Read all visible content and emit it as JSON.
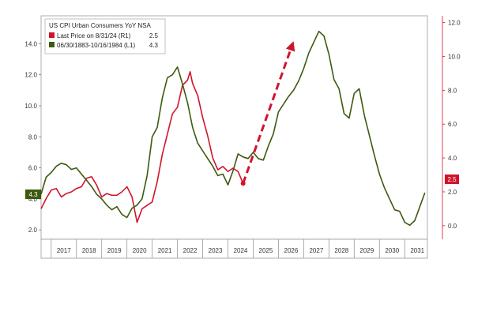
{
  "chart_data": {
    "type": "line",
    "legend": {
      "title": "US CPI Urban Consumers YoY NSA",
      "entries": [
        {
          "label": "Last Price on 8/31/24  (R1)",
          "value": "2.5",
          "color": "#d0142c"
        },
        {
          "label": "06/30/1883-10/16/1984  (L1)",
          "value": "4.3",
          "color": "#3d5a0f"
        }
      ],
      "placement": "top-left"
    },
    "x_categories": [
      "2017",
      "2018",
      "2019",
      "2020",
      "2021",
      "2022",
      "2023",
      "2024",
      "2025",
      "2026",
      "2027",
      "2028",
      "2029",
      "2030",
      "2031"
    ],
    "x_range": [
      2016.6,
      2031.9
    ],
    "left_axis": {
      "ticks": [
        "2.0",
        "4.0",
        "6.0",
        "8.0",
        "10.0",
        "12.0",
        "14.0"
      ],
      "ylim": [
        1.4,
        15.8
      ]
    },
    "right_axis": {
      "ticks": [
        "0.0",
        "2.0",
        "4.0",
        "6.0",
        "8.0",
        "10.0",
        "12.0"
      ],
      "ylim": [
        -0.8,
        12.4
      ]
    },
    "badges": {
      "left": "4.3",
      "right": "2.5"
    },
    "grid": false,
    "series": [
      {
        "name": "US CPI Urban Consumers YoY NSA (R1)",
        "axis": "right",
        "color": "#d0142c",
        "x": [
          2016.6,
          2016.8,
          2017.0,
          2017.2,
          2017.4,
          2017.6,
          2017.8,
          2018.0,
          2018.2,
          2018.4,
          2018.6,
          2018.8,
          2019.0,
          2019.2,
          2019.4,
          2019.6,
          2019.8,
          2020.0,
          2020.2,
          2020.4,
          2020.6,
          2020.8,
          2021.0,
          2021.2,
          2021.4,
          2021.6,
          2021.8,
          2022.0,
          2022.2,
          2022.4,
          2022.5,
          2022.6,
          2022.8,
          2023.0,
          2023.2,
          2023.4,
          2023.6,
          2023.8,
          2024.0,
          2024.2,
          2024.4,
          2024.6
        ],
        "values": [
          1.0,
          1.6,
          2.1,
          2.2,
          1.7,
          1.9,
          2.0,
          2.2,
          2.3,
          2.8,
          2.9,
          2.4,
          1.7,
          1.9,
          1.8,
          1.8,
          2.0,
          2.3,
          1.7,
          0.2,
          1.0,
          1.2,
          1.4,
          2.6,
          4.2,
          5.4,
          6.6,
          7.0,
          8.3,
          8.6,
          9.1,
          8.4,
          7.7,
          6.4,
          5.3,
          4.0,
          3.3,
          3.5,
          3.2,
          3.4,
          3.2,
          2.5
        ]
      },
      {
        "name": "06/30/1883-10/16/1984 (L1)",
        "axis": "left",
        "color": "#3d5a0f",
        "x": [
          2016.6,
          2016.8,
          2017.0,
          2017.2,
          2017.4,
          2017.6,
          2017.8,
          2018.0,
          2018.2,
          2018.4,
          2018.6,
          2018.8,
          2019.0,
          2019.2,
          2019.4,
          2019.6,
          2019.8,
          2020.0,
          2020.2,
          2020.4,
          2020.6,
          2020.8,
          2021.0,
          2021.2,
          2021.4,
          2021.6,
          2021.8,
          2022.0,
          2022.2,
          2022.4,
          2022.6,
          2022.8,
          2023.0,
          2023.2,
          2023.4,
          2023.6,
          2023.8,
          2024.0,
          2024.2,
          2024.4,
          2024.6,
          2024.8,
          2025.0,
          2025.2,
          2025.4,
          2025.6,
          2025.8,
          2026.0,
          2026.2,
          2026.4,
          2026.6,
          2026.8,
          2027.0,
          2027.2,
          2027.4,
          2027.6,
          2027.8,
          2028.0,
          2028.2,
          2028.4,
          2028.6,
          2028.8,
          2029.0,
          2029.2,
          2029.4,
          2029.6,
          2029.8,
          2030.0,
          2030.2,
          2030.4,
          2030.6,
          2030.8,
          2031.0,
          2031.2,
          2031.4,
          2031.6,
          2031.8
        ],
        "values": [
          4.3,
          5.4,
          5.7,
          6.1,
          6.3,
          6.2,
          5.9,
          6.0,
          5.6,
          5.2,
          4.8,
          4.3,
          4.0,
          3.6,
          3.3,
          3.5,
          3.0,
          2.8,
          3.4,
          3.6,
          4.0,
          5.5,
          8.0,
          8.6,
          10.5,
          11.8,
          12.0,
          12.5,
          11.4,
          10.2,
          8.6,
          7.6,
          7.1,
          6.6,
          6.1,
          5.5,
          5.6,
          4.9,
          5.8,
          6.9,
          6.7,
          6.6,
          7.0,
          6.6,
          6.5,
          7.4,
          8.2,
          9.6,
          10.1,
          10.6,
          11.0,
          11.6,
          12.4,
          13.4,
          14.1,
          14.8,
          14.5,
          13.3,
          11.7,
          11.1,
          9.5,
          9.2,
          10.8,
          11.1,
          9.4,
          8.1,
          6.8,
          5.6,
          4.7,
          4.0,
          3.3,
          3.2,
          2.5,
          2.3,
          2.6,
          3.5,
          4.4
        ]
      }
    ],
    "annotation": {
      "type": "dashed-arrow",
      "color": "#d0142c",
      "from": {
        "x": 2024.6,
        "right_value": 2.5
      },
      "to": {
        "x": 2026.6,
        "right_value": 10.9
      }
    }
  }
}
